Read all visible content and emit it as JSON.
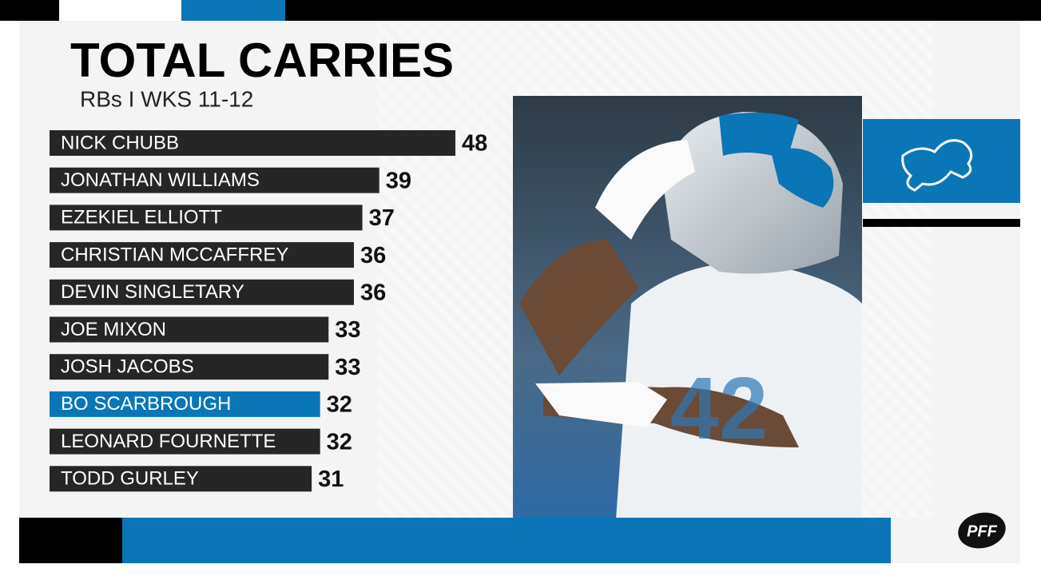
{
  "chart_data": {
    "type": "bar",
    "orientation": "horizontal",
    "title": "TOTAL CARRIES",
    "subtitle": "RBs I WKS 11-12",
    "categories": [
      "NICK CHUBB",
      "JONATHAN WILLIAMS",
      "EZEKIEL ELLIOTT",
      "CHRISTIAN MCCAFFREY",
      "DEVIN SINGLETARY",
      "JOE MIXON",
      "JOSH JACOBS",
      "BO SCARBROUGH",
      "LEONARD FOURNETTE",
      "TODD GURLEY"
    ],
    "values": [
      48,
      39,
      37,
      36,
      36,
      33,
      33,
      32,
      32,
      31
    ],
    "colors": [
      "#262626",
      "#262626",
      "#262626",
      "#262626",
      "#262626",
      "#262626",
      "#262626",
      "#0a76b7",
      "#262626",
      "#262626"
    ],
    "logo": "PFF"
  }
}
